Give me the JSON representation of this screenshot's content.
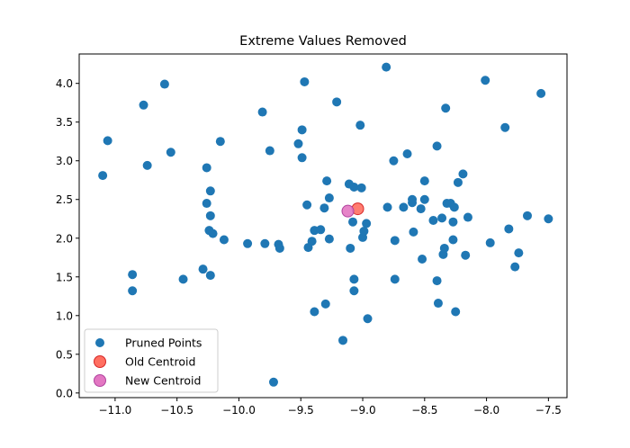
{
  "chart_data": {
    "type": "scatter",
    "title": "Extreme Values Removed",
    "xlabel": "",
    "ylabel": "",
    "xlim": [
      -11.29,
      -7.35
    ],
    "ylim": [
      -0.06,
      4.38
    ],
    "xticks": [
      -11.0,
      -10.5,
      -10.0,
      -9.5,
      -9.0,
      -8.5,
      -8.0,
      -7.5
    ],
    "xtick_labels": [
      "−11.0",
      "−10.5",
      "−10.0",
      "−9.5",
      "−9.0",
      "−8.5",
      "−8.0",
      "−7.5"
    ],
    "yticks": [
      0.0,
      0.5,
      1.0,
      1.5,
      2.0,
      2.5,
      3.0,
      3.5,
      4.0
    ],
    "ytick_labels": [
      "0.0",
      "0.5",
      "1.0",
      "1.5",
      "2.0",
      "2.5",
      "3.0",
      "3.5",
      "4.0"
    ],
    "grid": false,
    "legend_position": "lower-left",
    "series": [
      {
        "name": "Pruned Points",
        "color": "#1f77b4",
        "marker": "circle",
        "points": [
          [
            -11.1,
            2.81
          ],
          [
            -11.06,
            3.26
          ],
          [
            -10.86,
            1.53
          ],
          [
            -10.86,
            1.32
          ],
          [
            -10.77,
            3.72
          ],
          [
            -10.74,
            2.94
          ],
          [
            -10.6,
            3.99
          ],
          [
            -10.55,
            3.11
          ],
          [
            -10.45,
            1.47
          ],
          [
            -10.29,
            1.6
          ],
          [
            -10.26,
            2.91
          ],
          [
            -10.26,
            2.45
          ],
          [
            -10.23,
            2.61
          ],
          [
            -10.23,
            2.29
          ],
          [
            -10.24,
            2.1
          ],
          [
            -10.21,
            2.06
          ],
          [
            -10.23,
            1.52
          ],
          [
            -10.15,
            3.25
          ],
          [
            -10.12,
            1.98
          ],
          [
            -9.93,
            1.93
          ],
          [
            -9.81,
            3.63
          ],
          [
            -9.79,
            1.93
          ],
          [
            -9.75,
            3.13
          ],
          [
            -9.72,
            0.14
          ],
          [
            -9.68,
            1.92
          ],
          [
            -9.67,
            1.87
          ],
          [
            -9.52,
            3.22
          ],
          [
            -9.49,
            3.4
          ],
          [
            -9.49,
            3.04
          ],
          [
            -9.47,
            4.02
          ],
          [
            -9.45,
            2.43
          ],
          [
            -9.44,
            1.88
          ],
          [
            -9.41,
            1.96
          ],
          [
            -9.39,
            2.1
          ],
          [
            -9.39,
            1.05
          ],
          [
            -9.34,
            2.11
          ],
          [
            -9.31,
            2.39
          ],
          [
            -9.3,
            1.15
          ],
          [
            -9.29,
            2.74
          ],
          [
            -9.27,
            2.52
          ],
          [
            -9.27,
            1.99
          ],
          [
            -9.21,
            3.76
          ],
          [
            -9.16,
            0.68
          ],
          [
            -9.11,
            2.7
          ],
          [
            -9.1,
            1.87
          ],
          [
            -9.08,
            2.21
          ],
          [
            -9.07,
            2.66
          ],
          [
            -9.07,
            1.47
          ],
          [
            -9.07,
            1.32
          ],
          [
            -9.02,
            3.46
          ],
          [
            -9.01,
            2.65
          ],
          [
            -9.0,
            2.01
          ],
          [
            -8.99,
            2.09
          ],
          [
            -8.97,
            2.19
          ],
          [
            -8.96,
            0.96
          ],
          [
            -8.81,
            4.21
          ],
          [
            -8.8,
            2.4
          ],
          [
            -8.75,
            3.0
          ],
          [
            -8.74,
            1.97
          ],
          [
            -8.74,
            1.47
          ],
          [
            -8.67,
            2.4
          ],
          [
            -8.64,
            3.09
          ],
          [
            -8.6,
            2.46
          ],
          [
            -8.6,
            2.5
          ],
          [
            -8.59,
            2.08
          ],
          [
            -8.53,
            2.38
          ],
          [
            -8.52,
            1.73
          ],
          [
            -8.5,
            2.74
          ],
          [
            -8.5,
            2.5
          ],
          [
            -8.43,
            2.23
          ],
          [
            -8.4,
            3.19
          ],
          [
            -8.4,
            1.45
          ],
          [
            -8.39,
            1.16
          ],
          [
            -8.36,
            2.26
          ],
          [
            -8.35,
            1.79
          ],
          [
            -8.34,
            1.87
          ],
          [
            -8.33,
            3.68
          ],
          [
            -8.32,
            2.45
          ],
          [
            -8.29,
            2.45
          ],
          [
            -8.27,
            2.21
          ],
          [
            -8.27,
            1.98
          ],
          [
            -8.26,
            2.4
          ],
          [
            -8.25,
            1.05
          ],
          [
            -8.23,
            2.72
          ],
          [
            -8.19,
            2.83
          ],
          [
            -8.17,
            1.78
          ],
          [
            -8.15,
            2.27
          ],
          [
            -8.01,
            4.04
          ],
          [
            -7.97,
            1.94
          ],
          [
            -7.85,
            3.43
          ],
          [
            -7.82,
            2.12
          ],
          [
            -7.77,
            1.63
          ],
          [
            -7.74,
            1.81
          ],
          [
            -7.67,
            2.29
          ],
          [
            -7.56,
            3.87
          ],
          [
            -7.5,
            2.25
          ]
        ]
      },
      {
        "name": "Old Centroid",
        "color": "#ff6f61",
        "edge_color": "#d62728",
        "marker": "circle",
        "points": [
          [
            -9.04,
            2.38
          ]
        ]
      },
      {
        "name": "New Centroid",
        "color": "#e377c2",
        "edge_color": "#b0449f",
        "marker": "circle",
        "points": [
          [
            -9.12,
            2.35
          ]
        ]
      }
    ]
  }
}
